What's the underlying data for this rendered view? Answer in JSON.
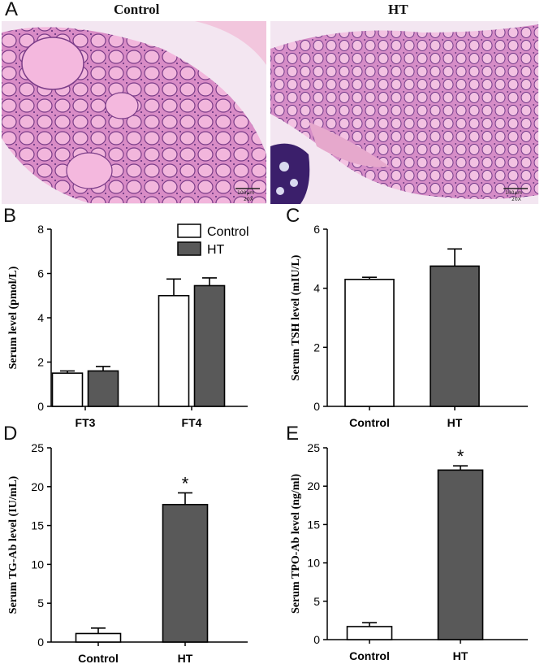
{
  "panels": {
    "A": {
      "letter": "A",
      "title_left": "Control",
      "title_right": "HT",
      "scale_bar": "100µm",
      "magnification": "20X"
    },
    "B": {
      "letter": "B"
    },
    "C": {
      "letter": "C"
    },
    "D": {
      "letter": "D"
    },
    "E": {
      "letter": "E"
    }
  },
  "colors": {
    "control_fill": "#ffffff",
    "ht_fill": "#595959",
    "stain_pink": "#e9a0d0",
    "stain_purple": "#3b1f6b"
  },
  "chart_data": [
    {
      "id": "B",
      "type": "bar",
      "categories": [
        "FT3",
        "FT4"
      ],
      "series": [
        {
          "name": "Control",
          "values": [
            1.5,
            5.0
          ],
          "errors": [
            0.1,
            0.75
          ]
        },
        {
          "name": "HT",
          "values": [
            1.6,
            5.45
          ],
          "errors": [
            0.2,
            0.35
          ]
        }
      ],
      "xlabel": "",
      "ylabel": "Serum level (pmol/L)",
      "ylim": [
        0,
        8
      ],
      "yticks": [
        "0",
        "2",
        "4",
        "6",
        "8"
      ],
      "legend": "top-center"
    },
    {
      "id": "C",
      "type": "bar",
      "categories": [
        "Control",
        "HT"
      ],
      "values": [
        4.3,
        4.75
      ],
      "errors": [
        0.07,
        0.58
      ],
      "xlabel": "",
      "ylabel": "Serum TSH level (mIU/L)",
      "ylim": [
        0,
        6
      ],
      "yticks": [
        "0",
        "2",
        "4",
        "6"
      ]
    },
    {
      "id": "D",
      "type": "bar",
      "categories": [
        "Control",
        "HT"
      ],
      "values": [
        1.1,
        17.7
      ],
      "errors": [
        0.7,
        1.5
      ],
      "annotations": [
        "",
        "*"
      ],
      "xlabel": "",
      "ylabel": "Serum TG-Ab level (IU/mL)",
      "ylim": [
        0,
        25
      ],
      "yticks": [
        "0",
        "5",
        "10",
        "15",
        "20",
        "25"
      ]
    },
    {
      "id": "E",
      "type": "bar",
      "categories": [
        "Control",
        "HT"
      ],
      "values": [
        1.7,
        22.1
      ],
      "errors": [
        0.5,
        0.55
      ],
      "annotations": [
        "",
        "*"
      ],
      "xlabel": "",
      "ylabel": "Serum TPO-Ab level (ng/ml)",
      "ylim": [
        0,
        25
      ],
      "yticks": [
        "0",
        "5",
        "10",
        "15",
        "20",
        "25"
      ]
    }
  ]
}
